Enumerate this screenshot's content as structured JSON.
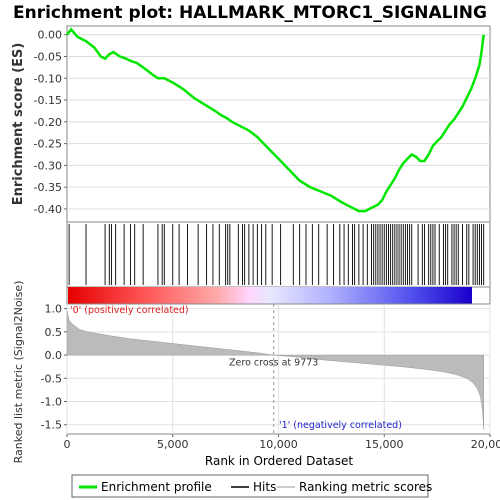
{
  "title": "Enrichment plot: HALLMARK_MTORC1_SIGNALING",
  "legend": [
    {
      "label": "Enrichment profile",
      "color": "#00e600"
    },
    {
      "label": "Hits",
      "color": "#000000"
    },
    {
      "label": "Ranking metric scores",
      "color": "#bbbbbb"
    }
  ],
  "chart_data": [
    {
      "type": "line",
      "ylabel": "Enrichment score (ES)",
      "xlim": [
        0,
        20000
      ],
      "ylim": [
        -0.43,
        0.02
      ],
      "yticks": [
        0.0,
        -0.05,
        -0.1,
        -0.15,
        -0.2,
        -0.25,
        -0.3,
        -0.35,
        -0.4
      ],
      "ytick_labels": [
        "0.00",
        "-0.05",
        "-0.10",
        "-0.15",
        "-0.20",
        "-0.25",
        "-0.30",
        "-0.35",
        "-0.40"
      ],
      "grid": true,
      "series": [
        {
          "name": "Enrichment profile",
          "color": "#00e600",
          "x": [
            0,
            200,
            500,
            900,
            1300,
            1600,
            1800,
            2000,
            2200,
            2500,
            2800,
            3000,
            3300,
            3600,
            4000,
            4300,
            4600,
            5000,
            5500,
            6000,
            6500,
            7000,
            7300,
            7500,
            7800,
            8200,
            8600,
            9000,
            9500,
            10000,
            10500,
            11000,
            11500,
            12000,
            12500,
            13000,
            13400,
            13800,
            14100,
            14300,
            14500,
            14700,
            14900,
            15100,
            15300,
            15500,
            15700,
            15900,
            16100,
            16300,
            16500,
            16700,
            16900,
            17100,
            17300,
            17500,
            17700,
            17900,
            18100,
            18300,
            18500,
            18700,
            18900,
            19100,
            19300,
            19500,
            19600,
            19700
          ],
          "y": [
            0.0,
            0.012,
            -0.005,
            -0.015,
            -0.03,
            -0.05,
            -0.055,
            -0.045,
            -0.04,
            -0.05,
            -0.055,
            -0.06,
            -0.065,
            -0.075,
            -0.09,
            -0.1,
            -0.1,
            -0.11,
            -0.125,
            -0.145,
            -0.16,
            -0.175,
            -0.185,
            -0.19,
            -0.2,
            -0.21,
            -0.22,
            -0.235,
            -0.26,
            -0.285,
            -0.31,
            -0.335,
            -0.35,
            -0.36,
            -0.37,
            -0.385,
            -0.395,
            -0.405,
            -0.405,
            -0.4,
            -0.395,
            -0.39,
            -0.38,
            -0.36,
            -0.345,
            -0.33,
            -0.31,
            -0.295,
            -0.285,
            -0.275,
            -0.28,
            -0.29,
            -0.29,
            -0.275,
            -0.255,
            -0.245,
            -0.235,
            -0.22,
            -0.205,
            -0.195,
            -0.18,
            -0.165,
            -0.145,
            -0.125,
            -0.1,
            -0.07,
            -0.04,
            0.0
          ]
        }
      ]
    },
    {
      "type": "scatter",
      "series": [
        {
          "name": "Hits",
          "x": [
            100,
            900,
            1800,
            2000,
            2100,
            2300,
            2700,
            3000,
            3200,
            3600,
            4300,
            4500,
            4600,
            5000,
            5300,
            5700,
            6200,
            6600,
            6900,
            7200,
            7500,
            7600,
            7700,
            8100,
            8300,
            8400,
            8600,
            8800,
            9000,
            9200,
            9400,
            9700,
            10100,
            10700,
            11000,
            11300,
            11600,
            11900,
            12300,
            12600,
            12900,
            13100,
            13300,
            13500,
            13600,
            13800,
            14000,
            14200,
            14400,
            14500,
            14600,
            14700,
            14800,
            14900,
            15000,
            15100,
            15200,
            15300,
            15400,
            15500,
            15600,
            15700,
            15800,
            15900,
            16000,
            16100,
            16200,
            16300,
            16600,
            16800,
            16900,
            17100,
            17200,
            17300,
            17400,
            17600,
            17800,
            17900,
            18000,
            18200,
            18300,
            18400,
            18500,
            18700,
            18900,
            19000,
            19200,
            19300,
            19400,
            19500,
            19600,
            19700
          ]
        }
      ]
    },
    {
      "type": "area",
      "ylabel": "Ranked list metric (Signal2Noise)",
      "xlabel": "Rank in Ordered Dataset",
      "xlim": [
        0,
        20000
      ],
      "ylim": [
        -1.7,
        1.1
      ],
      "xticks": [
        0,
        5000,
        10000,
        15000,
        20000
      ],
      "xtick_labels": [
        "0",
        "5,000",
        "10,000",
        "15,000",
        "20,000"
      ],
      "yticks": [
        1.0,
        0.5,
        0.0,
        -0.5,
        -1.0,
        -1.5
      ],
      "ytick_labels": [
        "1.0",
        "0.5",
        "0.0",
        "-0.5",
        "-1.0",
        "-1.5"
      ],
      "grid": true,
      "series": [
        {
          "name": "Ranking metric scores",
          "color": "#bbbbbb",
          "x": [
            0,
            100,
            300,
            600,
            1000,
            2000,
            3000,
            4000,
            5000,
            6000,
            7000,
            8000,
            9000,
            9773,
            11000,
            12000,
            13000,
            14000,
            15000,
            16000,
            17000,
            17800,
            18400,
            18900,
            19200,
            19400,
            19550,
            19650,
            19700
          ],
          "y": [
            0.95,
            0.75,
            0.65,
            0.55,
            0.5,
            0.42,
            0.35,
            0.3,
            0.25,
            0.2,
            0.15,
            0.1,
            0.05,
            0.0,
            -0.05,
            -0.1,
            -0.14,
            -0.18,
            -0.22,
            -0.26,
            -0.31,
            -0.36,
            -0.42,
            -0.5,
            -0.6,
            -0.72,
            -0.9,
            -1.2,
            -1.6
          ]
        }
      ],
      "annotations": [
        {
          "text": "'0' (positively correlated)",
          "color": "#dd2222"
        },
        {
          "text": "Zero cross at 9773",
          "color": "#333333",
          "x": 9773
        },
        {
          "text": "'1' (negatively correlated)",
          "color": "#2222cc"
        }
      ]
    }
  ]
}
